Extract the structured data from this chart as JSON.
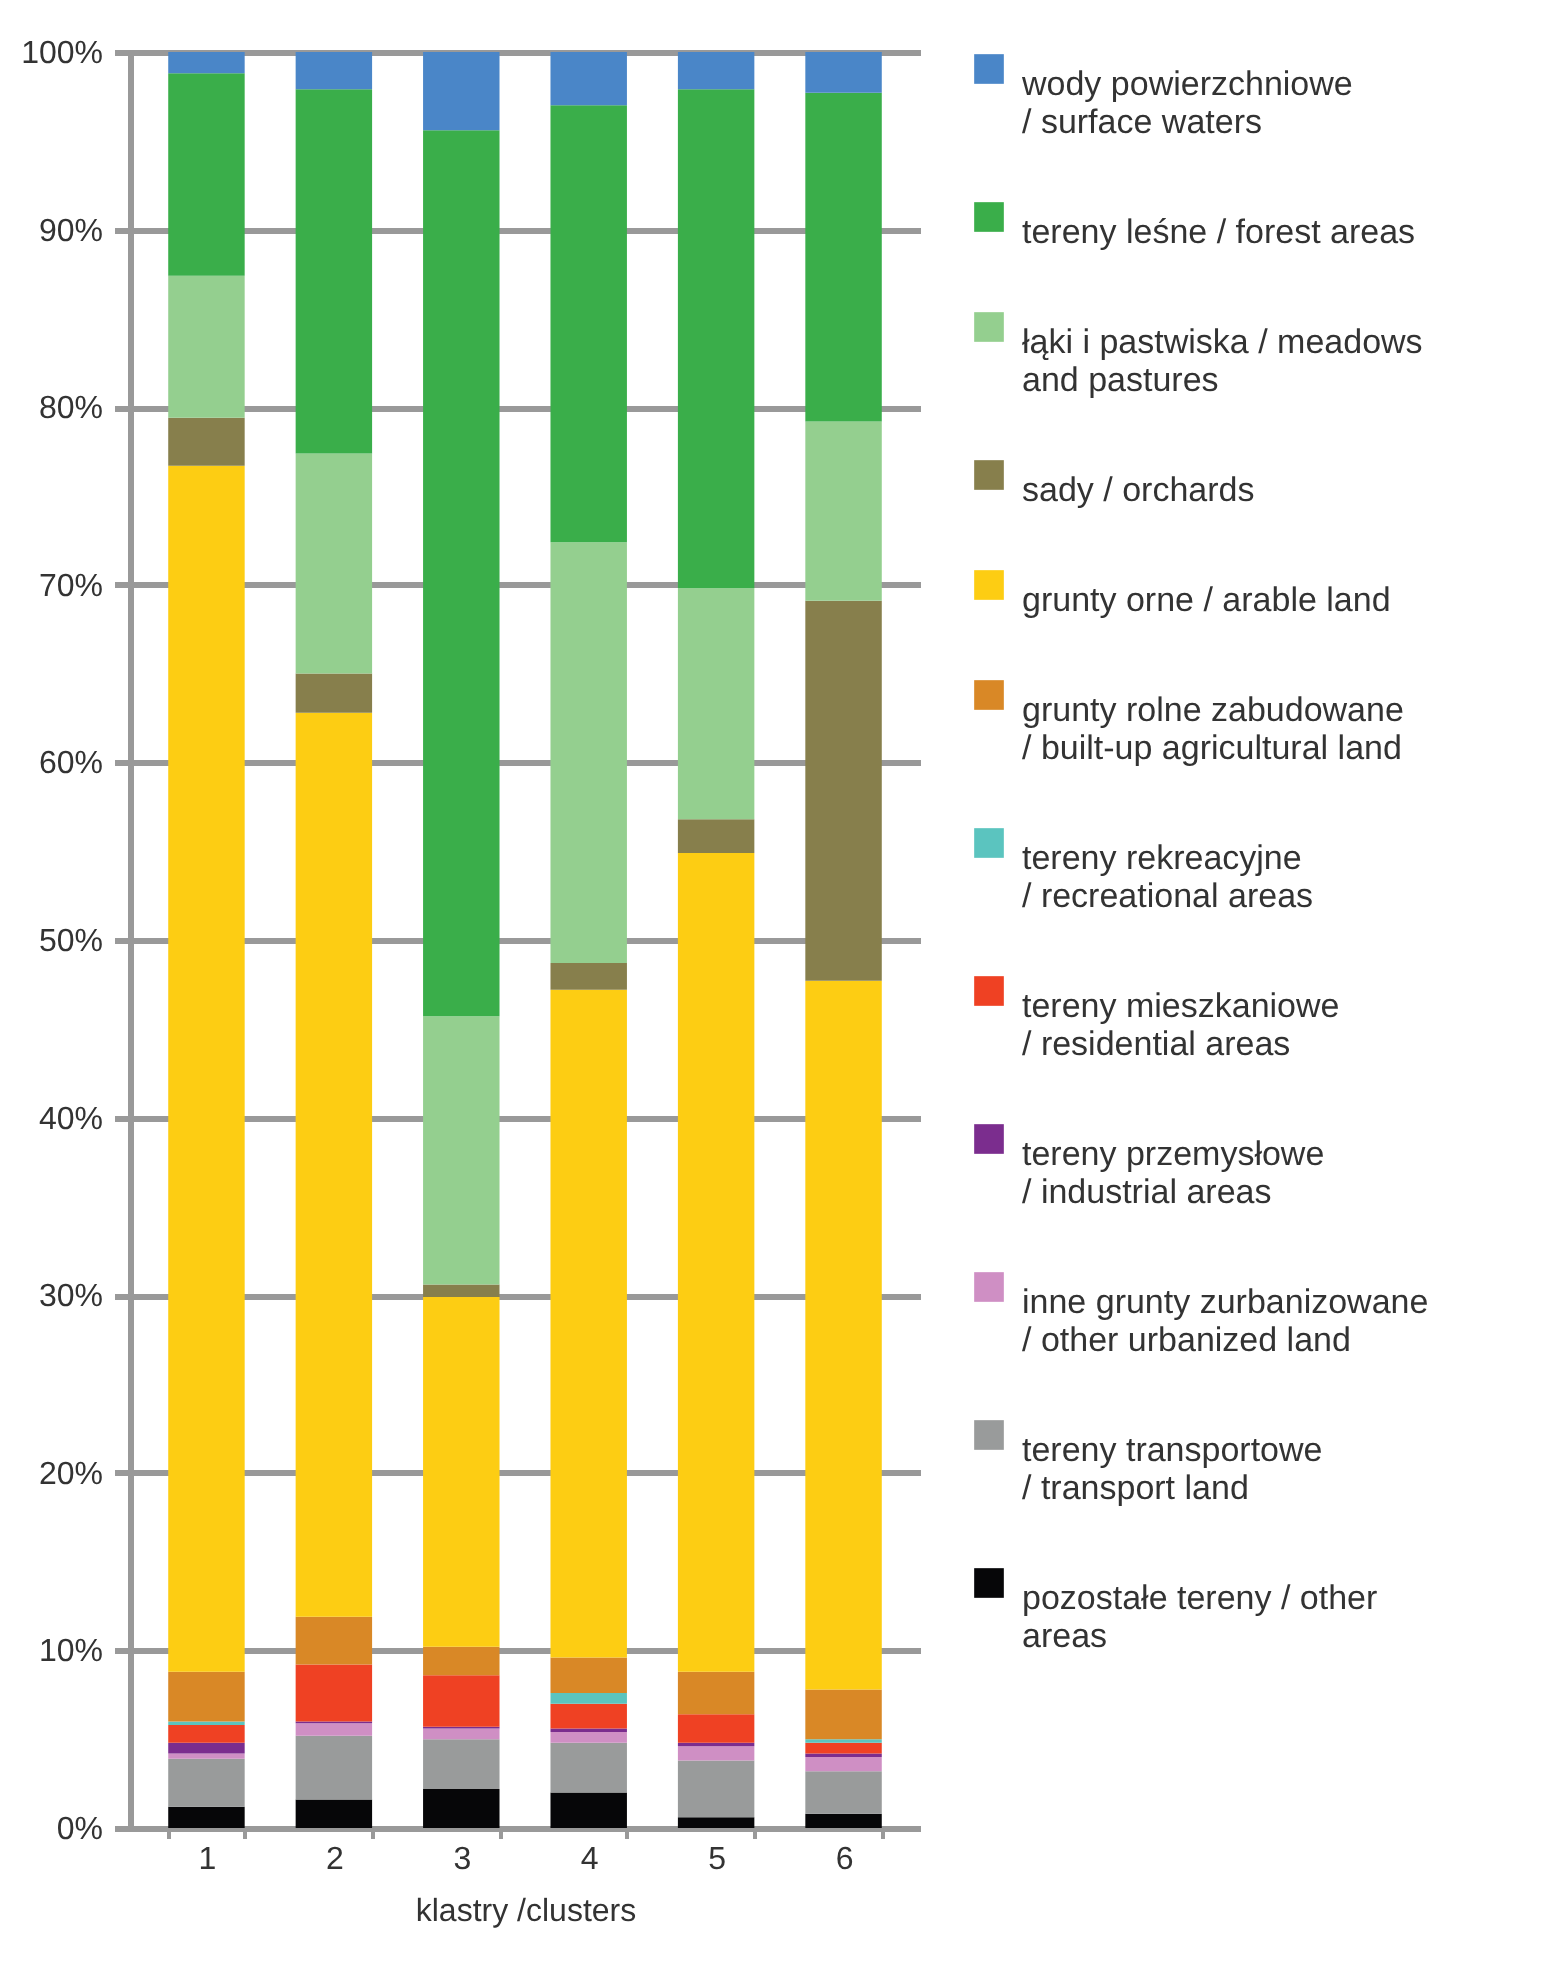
{
  "chart_data": {
    "type": "bar",
    "stacked": true,
    "xlabel": "klastry /clusters",
    "categories": [
      "1",
      "2",
      "3",
      "4",
      "5",
      "6"
    ],
    "ylim": [
      0,
      100
    ],
    "yticks": [
      {
        "value": 0,
        "label": "0%"
      },
      {
        "value": 10,
        "label": "10%"
      },
      {
        "value": 20,
        "label": "20%"
      },
      {
        "value": 30,
        "label": "30%"
      },
      {
        "value": 40,
        "label": "40%"
      },
      {
        "value": 50,
        "label": "50%"
      },
      {
        "value": 60,
        "label": "60%"
      },
      {
        "value": 70,
        "label": "70%"
      },
      {
        "value": 80,
        "label": "80%"
      },
      {
        "value": 90,
        "label": "90%"
      },
      {
        "value": 100,
        "label": "100%"
      }
    ],
    "grid": "y",
    "legend": "right",
    "series": [
      {
        "name": "pozostałe tereny / other areas",
        "color": "#060608",
        "values": [
          1.2,
          1.6,
          2.2,
          2.0,
          0.6,
          0.8
        ]
      },
      {
        "name": "tereny transportowe / transport  land",
        "color": "#999b9b",
        "values": [
          2.7,
          3.6,
          2.8,
          2.8,
          3.2,
          2.4
        ]
      },
      {
        "name": "inne grunty zurbanizowane / other urbanized land",
        "color": "#cf8fc4",
        "values": [
          0.3,
          0.7,
          0.6,
          0.6,
          0.8,
          0.8
        ]
      },
      {
        "name": "tereny przemysłowe / industrial areas",
        "color": "#7b2d8e",
        "values": [
          0.6,
          0.1,
          0.1,
          0.2,
          0.2,
          0.2
        ]
      },
      {
        "name": "tereny mieszkaniowe / residential areas",
        "color": "#ef4123",
        "values": [
          1.0,
          3.2,
          2.9,
          1.4,
          1.6,
          0.6
        ]
      },
      {
        "name": "tereny rekreacyjne / recreational areas",
        "color": "#5bc4bf",
        "values": [
          0.2,
          0,
          0,
          0.6,
          0,
          0.2
        ]
      },
      {
        "name": "grunty rolne zabudowane / built-up agricultural land",
        "color": "#d98826",
        "values": [
          2.8,
          2.7,
          1.6,
          2.0,
          2.4,
          2.8
        ]
      },
      {
        "name": "grunty orne / arable land",
        "color": "#fdcd13",
        "values": [
          67.9,
          50.9,
          19.7,
          37.6,
          46.1,
          39.9
        ]
      },
      {
        "name": "sady / orchards",
        "color": "#877f4c",
        "values": [
          2.7,
          2.2,
          0.7,
          1.5,
          1.9,
          21.4
        ]
      },
      {
        "name": "łąki i pastwiska / meadows and pastures",
        "color": "#94cf8f",
        "values": [
          8.0,
          12.4,
          15.1,
          23.7,
          13.0,
          10.1
        ]
      },
      {
        "name": "tereny leśne / forest areas",
        "color": "#3aae4a",
        "values": [
          11.4,
          20.5,
          49.9,
          24.6,
          28.1,
          18.5
        ]
      },
      {
        "name": "wody powierzchniowe / surface waters",
        "color": "#4a86c8",
        "values": [
          1.2,
          2.1,
          4.4,
          3.0,
          2.1,
          2.3
        ]
      }
    ]
  }
}
